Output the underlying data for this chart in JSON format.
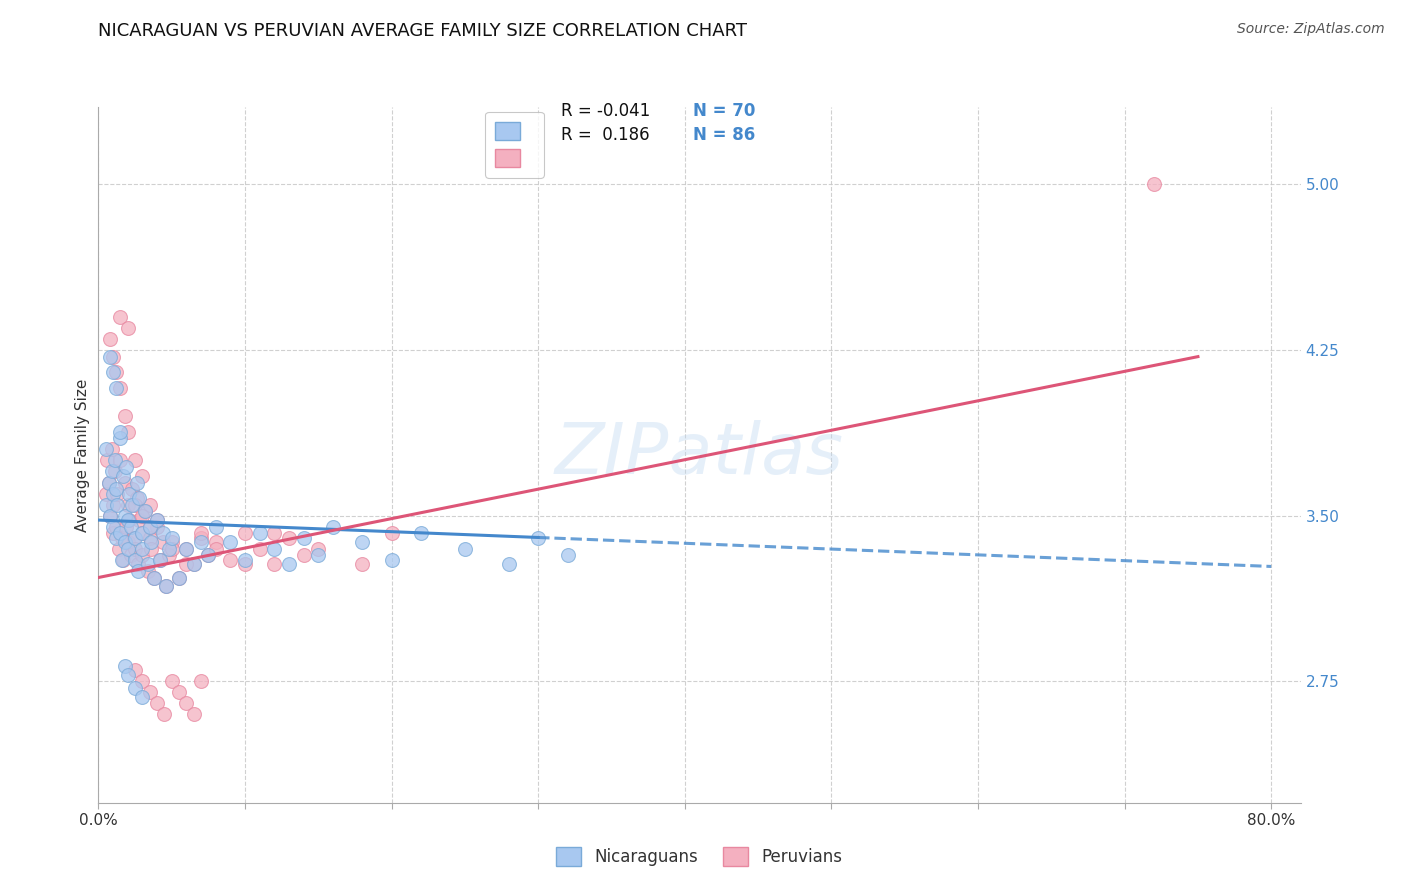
{
  "title": "NICARAGUAN VS PERUVIAN AVERAGE FAMILY SIZE CORRELATION CHART",
  "source_text": "Source: ZipAtlas.com",
  "ylabel": "Average Family Size",
  "ytick_values": [
    2.75,
    3.5,
    4.25,
    5.0
  ],
  "ylim": [
    2.2,
    5.35
  ],
  "xlim": [
    0.0,
    0.82
  ],
  "background_color": "#ffffff",
  "grid_color": "#c8c8c8",
  "nicaraguan_fill": "#a8c8f0",
  "peruvian_fill": "#f4b0c0",
  "nicaraguan_edge": "#7aaad8",
  "peruvian_edge": "#e888a0",
  "nicaraguan_line": "#4488cc",
  "peruvian_line": "#dd5577",
  "r_nicaraguan": -0.041,
  "n_nicaraguan": 70,
  "r_peruvian": 0.186,
  "n_peruvian": 86,
  "legend_label_nicaraguan": "Nicaraguans",
  "legend_label_peruvian": "Peruvians",
  "watermark": "ZIPatlas",
  "nic_x": [
    0.005,
    0.005,
    0.007,
    0.008,
    0.009,
    0.01,
    0.01,
    0.011,
    0.012,
    0.012,
    0.013,
    0.015,
    0.015,
    0.016,
    0.017,
    0.018,
    0.018,
    0.019,
    0.02,
    0.02,
    0.021,
    0.022,
    0.023,
    0.025,
    0.025,
    0.026,
    0.027,
    0.028,
    0.03,
    0.03,
    0.032,
    0.034,
    0.035,
    0.036,
    0.038,
    0.04,
    0.042,
    0.044,
    0.046,
    0.048,
    0.05,
    0.055,
    0.06,
    0.065,
    0.07,
    0.075,
    0.08,
    0.09,
    0.1,
    0.11,
    0.12,
    0.13,
    0.14,
    0.15,
    0.16,
    0.18,
    0.2,
    0.22,
    0.25,
    0.28,
    0.3,
    0.32,
    0.008,
    0.01,
    0.012,
    0.015,
    0.018,
    0.02,
    0.025,
    0.03
  ],
  "nic_y": [
    3.55,
    3.8,
    3.65,
    3.5,
    3.7,
    3.6,
    3.45,
    3.75,
    3.4,
    3.62,
    3.55,
    3.85,
    3.42,
    3.3,
    3.68,
    3.5,
    3.38,
    3.72,
    3.48,
    3.35,
    3.6,
    3.45,
    3.55,
    3.4,
    3.3,
    3.65,
    3.25,
    3.58,
    3.42,
    3.35,
    3.52,
    3.28,
    3.45,
    3.38,
    3.22,
    3.48,
    3.3,
    3.42,
    3.18,
    3.35,
    3.4,
    3.22,
    3.35,
    3.28,
    3.38,
    3.32,
    3.45,
    3.38,
    3.3,
    3.42,
    3.35,
    3.28,
    3.4,
    3.32,
    3.45,
    3.38,
    3.3,
    3.42,
    3.35,
    3.28,
    3.4,
    3.32,
    4.22,
    4.15,
    4.08,
    3.88,
    2.82,
    2.78,
    2.72,
    2.68
  ],
  "per_x": [
    0.005,
    0.006,
    0.007,
    0.008,
    0.009,
    0.01,
    0.01,
    0.011,
    0.012,
    0.013,
    0.014,
    0.015,
    0.016,
    0.017,
    0.018,
    0.019,
    0.02,
    0.02,
    0.021,
    0.022,
    0.023,
    0.024,
    0.025,
    0.026,
    0.027,
    0.028,
    0.03,
    0.03,
    0.032,
    0.034,
    0.035,
    0.036,
    0.038,
    0.04,
    0.042,
    0.044,
    0.046,
    0.048,
    0.05,
    0.055,
    0.06,
    0.065,
    0.07,
    0.075,
    0.08,
    0.09,
    0.1,
    0.11,
    0.12,
    0.13,
    0.14,
    0.008,
    0.01,
    0.012,
    0.015,
    0.018,
    0.02,
    0.025,
    0.03,
    0.035,
    0.04,
    0.05,
    0.06,
    0.07,
    0.08,
    0.1,
    0.12,
    0.15,
    0.18,
    0.2,
    0.025,
    0.03,
    0.035,
    0.04,
    0.045,
    0.05,
    0.055,
    0.06,
    0.065,
    0.07,
    0.015,
    0.02,
    0.025,
    0.03,
    0.035,
    0.72
  ],
  "per_y": [
    3.6,
    3.75,
    3.65,
    3.5,
    3.8,
    3.55,
    3.42,
    3.7,
    3.45,
    3.6,
    3.35,
    3.75,
    3.4,
    3.3,
    3.65,
    3.45,
    3.38,
    3.55,
    3.48,
    3.32,
    3.62,
    3.4,
    3.35,
    3.58,
    3.28,
    3.48,
    3.42,
    3.32,
    3.52,
    3.25,
    3.4,
    3.35,
    3.22,
    3.45,
    3.3,
    3.38,
    3.18,
    3.32,
    3.38,
    3.22,
    3.35,
    3.28,
    3.4,
    3.32,
    3.38,
    3.3,
    3.42,
    3.35,
    3.28,
    3.4,
    3.32,
    4.3,
    4.22,
    4.15,
    4.08,
    3.95,
    3.88,
    3.75,
    3.68,
    3.55,
    3.48,
    3.35,
    3.28,
    3.42,
    3.35,
    3.28,
    3.42,
    3.35,
    3.28,
    3.42,
    2.8,
    2.75,
    2.7,
    2.65,
    2.6,
    2.75,
    2.7,
    2.65,
    2.6,
    2.75,
    4.4,
    4.35,
    3.55,
    3.5,
    3.45,
    5.0
  ]
}
